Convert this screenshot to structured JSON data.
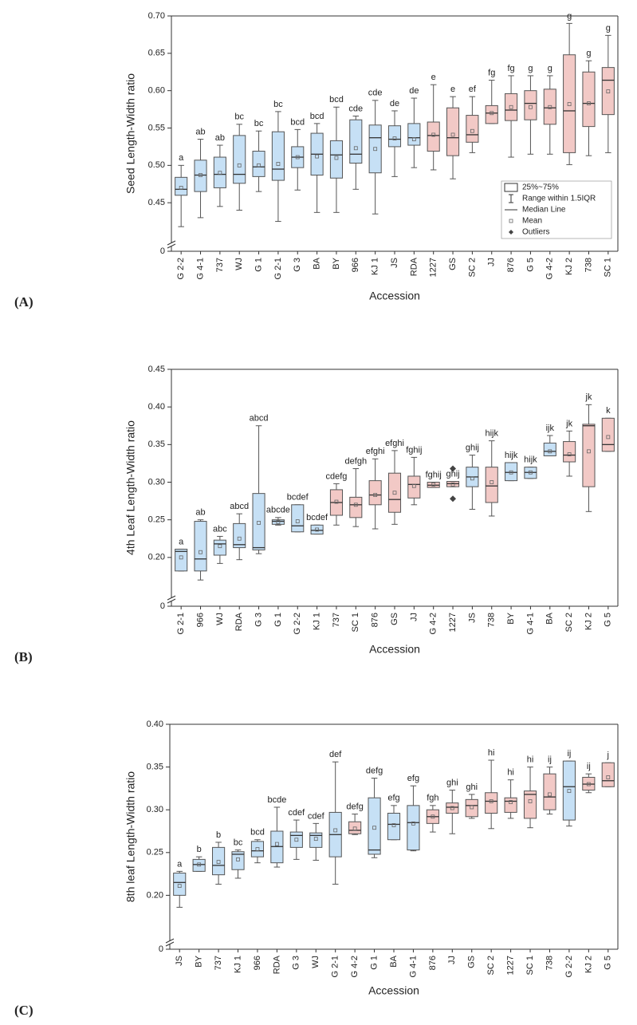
{
  "chart_data": [
    {
      "type": "box",
      "panel_label": "(A)",
      "y_label": "Seed Length-Width ratio",
      "x_label": "Accession",
      "ylim": [
        0,
        0.7
      ],
      "yticks": [
        0,
        0.45,
        {
          "value": 0.5,
          "label": "0.50"
        },
        0.55,
        {
          "value": 0.6,
          "label": "0.60"
        },
        0.65,
        {
          "value": 0.7,
          "label": "0.70"
        }
      ],
      "axis_break": true,
      "categories": [
        "G 2-2",
        "G 4-1",
        "737",
        "WJ",
        "G 1",
        "G 2-1",
        "G 3",
        "BA",
        "BY",
        "966",
        "KJ 1",
        "JS",
        "RDA",
        "1227",
        "GS",
        "SC 2",
        "JJ",
        "876",
        "G 5",
        "G 4-2",
        "KJ 2",
        "738",
        "SC 1"
      ],
      "min": [
        0.418,
        0.43,
        0.445,
        0.44,
        0.465,
        0.425,
        0.467,
        0.437,
        0.437,
        0.468,
        0.435,
        0.485,
        0.497,
        0.494,
        0.482,
        0.517,
        0.556,
        0.511,
        0.515,
        0.515,
        0.501,
        0.513,
        0.517
      ],
      "q1": [
        0.46,
        0.465,
        0.47,
        0.476,
        0.485,
        0.48,
        0.497,
        0.487,
        0.483,
        0.503,
        0.49,
        0.525,
        0.527,
        0.519,
        0.513,
        0.531,
        0.556,
        0.56,
        0.561,
        0.555,
        0.517,
        0.552,
        0.568
      ],
      "median": [
        0.468,
        0.487,
        0.488,
        0.488,
        0.498,
        0.495,
        0.511,
        0.515,
        0.514,
        0.515,
        0.537,
        0.535,
        0.537,
        0.54,
        0.537,
        0.541,
        0.57,
        0.574,
        0.583,
        0.577,
        0.573,
        0.583,
        0.614
      ],
      "q3": [
        0.484,
        0.507,
        0.511,
        0.54,
        0.519,
        0.545,
        0.525,
        0.543,
        0.533,
        0.561,
        0.554,
        0.553,
        0.556,
        0.558,
        0.577,
        0.567,
        0.58,
        0.596,
        0.6,
        0.602,
        0.648,
        0.625,
        0.631
      ],
      "max": [
        0.5,
        0.535,
        0.527,
        0.555,
        0.546,
        0.572,
        0.548,
        0.556,
        0.578,
        0.566,
        0.587,
        0.573,
        0.59,
        0.608,
        0.592,
        0.592,
        0.614,
        0.62,
        0.62,
        0.62,
        0.69,
        0.64,
        0.674
      ],
      "mean": [
        0.47,
        0.487,
        0.49,
        0.5,
        0.5,
        0.502,
        0.511,
        0.512,
        0.51,
        0.523,
        0.522,
        0.536,
        0.535,
        0.541,
        0.541,
        0.546,
        0.57,
        0.578,
        0.578,
        0.578,
        0.582,
        0.583,
        0.599
      ],
      "letters": [
        "a",
        "ab",
        "ab",
        "bc",
        "bc",
        "bc",
        "bcd",
        "bcd",
        "bcd",
        "cde",
        "cde",
        "de",
        "de",
        "e",
        "e",
        "ef",
        "fg",
        "fg",
        "g",
        "g",
        "g",
        "g",
        "g"
      ],
      "colors": [
        "#c6e0f5",
        "#c6e0f5",
        "#c6e0f5",
        "#c6e0f5",
        "#c6e0f5",
        "#c6e0f5",
        "#c6e0f5",
        "#c6e0f5",
        "#c6e0f5",
        "#c6e0f5",
        "#c6e0f5",
        "#c6e0f5",
        "#c6e0f5",
        "#f2c9c6",
        "#f2c9c6",
        "#f2c9c6",
        "#f2c9c6",
        "#f2c9c6",
        "#f2c9c6",
        "#f2c9c6",
        "#f2c9c6",
        "#f2c9c6",
        "#f2c9c6"
      ],
      "legend": {
        "position": "lower right",
        "items": [
          "25%~75%",
          "Range within 1.5IQR",
          "Median Line",
          "Mean",
          "Outliers"
        ]
      }
    },
    {
      "type": "box",
      "panel_label": "(B)",
      "y_label": "4th Leaf Length-Width ratio",
      "x_label": "Accession",
      "ylim": [
        0,
        0.45
      ],
      "yticks": [
        0,
        {
          "value": 0.2,
          "label": "0.20"
        },
        0.25,
        {
          "value": 0.3,
          "label": "0.30"
        },
        0.35,
        {
          "value": 0.4,
          "label": "0.40"
        },
        0.45
      ],
      "axis_break": true,
      "categories": [
        "G 2-1",
        "966",
        "WJ",
        "RDA",
        "G 3",
        "G 1",
        "G 2-2",
        "KJ 1",
        "737",
        "SC 1",
        "876",
        "GS",
        "JJ",
        "G 4-2",
        "1227",
        "JS",
        "738",
        "BY",
        "G 4-1",
        "BA",
        "SC 2",
        "KJ 2",
        "G 5"
      ],
      "min": [
        0.182,
        0.17,
        0.192,
        0.197,
        0.205,
        0.243,
        0.234,
        0.231,
        0.243,
        0.241,
        0.238,
        0.244,
        0.27,
        0.293,
        0.294,
        0.264,
        0.255,
        0.302,
        0.305,
        0.335,
        0.308,
        0.261,
        0.341
      ],
      "q1": [
        0.182,
        0.182,
        0.203,
        0.213,
        0.21,
        0.244,
        0.234,
        0.231,
        0.256,
        0.253,
        0.27,
        0.26,
        0.279,
        0.293,
        0.294,
        0.294,
        0.273,
        0.302,
        0.305,
        0.335,
        0.327,
        0.294,
        0.341
      ],
      "median": [
        0.208,
        0.198,
        0.218,
        0.217,
        0.213,
        0.248,
        0.242,
        0.236,
        0.273,
        0.27,
        0.283,
        0.277,
        0.297,
        0.296,
        0.298,
        0.307,
        0.295,
        0.313,
        0.313,
        0.341,
        0.336,
        0.375,
        0.35
      ],
      "q3": [
        0.211,
        0.248,
        0.223,
        0.245,
        0.285,
        0.25,
        0.27,
        0.243,
        0.29,
        0.28,
        0.302,
        0.312,
        0.308,
        0.3,
        0.301,
        0.32,
        0.32,
        0.326,
        0.32,
        0.352,
        0.354,
        0.377,
        0.385
      ],
      "max": [
        0.211,
        0.25,
        0.228,
        0.258,
        0.375,
        0.253,
        0.27,
        0.243,
        0.298,
        0.318,
        0.331,
        0.342,
        0.333,
        0.3,
        0.301,
        0.336,
        0.355,
        0.326,
        0.32,
        0.362,
        0.368,
        0.403,
        0.385
      ],
      "mean": [
        0.2,
        0.207,
        0.215,
        0.225,
        0.246,
        0.247,
        0.248,
        0.237,
        0.274,
        0.27,
        0.283,
        0.286,
        0.295,
        0.297,
        0.297,
        0.305,
        0.3,
        0.313,
        0.313,
        0.341,
        0.337,
        0.341,
        0.36
      ],
      "outliers": [
        [],
        [],
        [],
        [],
        [],
        [],
        [],
        [],
        [],
        [],
        [],
        [],
        [],
        [],
        [
          0.318,
          0.278
        ],
        [],
        [],
        [],
        [],
        [],
        [],
        [],
        []
      ],
      "letters": [
        "a",
        "ab",
        "abc",
        "abcd",
        "abcd",
        "abcde",
        "bcdef",
        "bcdef",
        "cdefg",
        "defgh",
        "efghi",
        "efghi",
        "fghij",
        "fghij",
        "ghij",
        "ghij",
        "hijk",
        "hijk",
        "hijk",
        "ijk",
        "jk",
        "jk",
        "k"
      ],
      "colors": [
        "#c6e0f5",
        "#c6e0f5",
        "#c6e0f5",
        "#c6e0f5",
        "#c6e0f5",
        "#c6e0f5",
        "#c6e0f5",
        "#c6e0f5",
        "#f2c9c6",
        "#f2c9c6",
        "#f2c9c6",
        "#f2c9c6",
        "#f2c9c6",
        "#f2c9c6",
        "#f2c9c6",
        "#c6e0f5",
        "#f2c9c6",
        "#c6e0f5",
        "#c6e0f5",
        "#c6e0f5",
        "#f2c9c6",
        "#f2c9c6",
        "#f2c9c6"
      ]
    },
    {
      "type": "box",
      "panel_label": "(C)",
      "y_label": "8th leaf Length-Width ratio",
      "x_label": "Accession",
      "ylim": [
        0,
        0.4
      ],
      "yticks": [
        0,
        {
          "value": 0.2,
          "label": "0.20"
        },
        0.25,
        {
          "value": 0.3,
          "label": "0.30"
        },
        0.35,
        {
          "value": 0.4,
          "label": "0.40"
        }
      ],
      "axis_break": true,
      "categories": [
        "JS",
        "BY",
        "737",
        "KJ 1",
        "966",
        "RDA",
        "G 3",
        "WJ",
        "G 2-1",
        "G 4-2",
        "G 1",
        "BA",
        "G 4-1",
        "876",
        "JJ",
        "GS",
        "SC 2",
        "1227",
        "SC 1",
        "738",
        "G 2-2",
        "KJ 2",
        "G 5"
      ],
      "min": [
        0.186,
        0.228,
        0.213,
        0.22,
        0.238,
        0.233,
        0.242,
        0.241,
        0.213,
        0.271,
        0.244,
        0.265,
        0.252,
        0.274,
        0.272,
        0.29,
        0.278,
        0.29,
        0.279,
        0.295,
        0.281,
        0.32,
        0.327
      ],
      "q1": [
        0.2,
        0.228,
        0.224,
        0.23,
        0.245,
        0.238,
        0.256,
        0.256,
        0.245,
        0.272,
        0.248,
        0.265,
        0.253,
        0.284,
        0.296,
        0.292,
        0.296,
        0.297,
        0.29,
        0.3,
        0.288,
        0.323,
        0.327
      ],
      "median": [
        0.215,
        0.236,
        0.235,
        0.248,
        0.252,
        0.257,
        0.27,
        0.27,
        0.271,
        0.276,
        0.253,
        0.283,
        0.285,
        0.292,
        0.303,
        0.305,
        0.31,
        0.31,
        0.318,
        0.315,
        0.327,
        0.33,
        0.334
      ],
      "q3": [
        0.226,
        0.242,
        0.256,
        0.251,
        0.263,
        0.275,
        0.274,
        0.273,
        0.297,
        0.286,
        0.314,
        0.296,
        0.305,
        0.3,
        0.308,
        0.312,
        0.32,
        0.314,
        0.322,
        0.342,
        0.357,
        0.338,
        0.355
      ],
      "max": [
        0.228,
        0.245,
        0.262,
        0.253,
        0.265,
        0.303,
        0.288,
        0.284,
        0.356,
        0.295,
        0.337,
        0.305,
        0.328,
        0.305,
        0.323,
        0.318,
        0.358,
        0.335,
        0.35,
        0.35,
        0.357,
        0.342,
        0.355
      ],
      "mean": [
        0.211,
        0.236,
        0.239,
        0.242,
        0.254,
        0.26,
        0.265,
        0.266,
        0.276,
        0.278,
        0.279,
        0.282,
        0.284,
        0.292,
        0.302,
        0.303,
        0.31,
        0.309,
        0.31,
        0.318,
        0.322,
        0.33,
        0.338
      ],
      "letters": [
        "a",
        "b",
        "b",
        "bc",
        "bcd",
        "bcde",
        "cdef",
        "cdef",
        "def",
        "defg",
        "defg",
        "efg",
        "efg",
        "fgh",
        "ghi",
        "ghi",
        "hi",
        "hi",
        "hi",
        "ij",
        "ij",
        "ij",
        "j"
      ],
      "colors": [
        "#c6e0f5",
        "#c6e0f5",
        "#c6e0f5",
        "#c6e0f5",
        "#c6e0f5",
        "#c6e0f5",
        "#c6e0f5",
        "#c6e0f5",
        "#c6e0f5",
        "#f2c9c6",
        "#c6e0f5",
        "#c6e0f5",
        "#c6e0f5",
        "#f2c9c6",
        "#f2c9c6",
        "#f2c9c6",
        "#f2c9c6",
        "#f2c9c6",
        "#f2c9c6",
        "#f2c9c6",
        "#c6e0f5",
        "#f2c9c6",
        "#f2c9c6"
      ]
    }
  ]
}
